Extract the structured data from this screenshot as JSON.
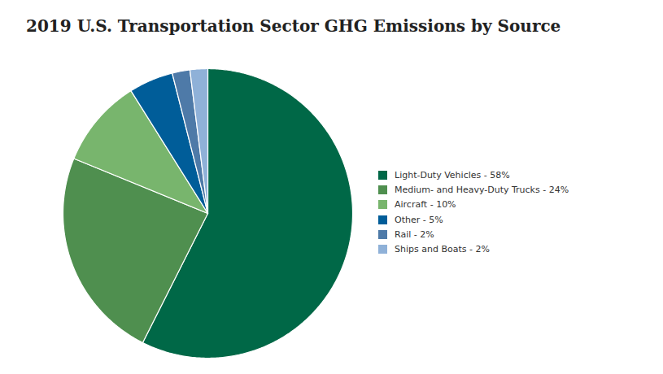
{
  "chart_data": {
    "type": "pie",
    "title": "2019 U.S. Transportation Sector GHG Emissions by Source",
    "categories": [
      "Light-Duty Vehicles - 58%",
      "Medium- and Heavy-Duty Trucks - 24%",
      "Aircraft - 10%",
      "Other - 5%",
      "Rail - 2%",
      "Ships and Boats - 2%"
    ],
    "values": [
      58,
      24,
      10,
      5,
      2,
      2
    ],
    "colors": [
      "#006847",
      "#4f8f4f",
      "#78b56d",
      "#005d99",
      "#4e7aa8",
      "#8fb1d8"
    ],
    "legend": "right"
  }
}
